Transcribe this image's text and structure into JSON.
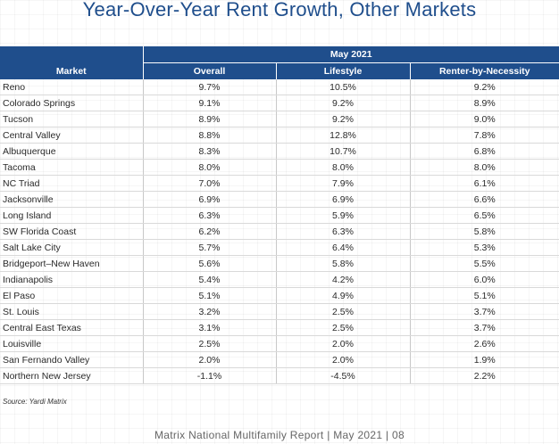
{
  "title": "Year-Over-Year Rent Growth, Other Markets",
  "table": {
    "group_header": "May 2021",
    "columns": [
      "Market",
      "Overall",
      "Lifestyle",
      "Renter-by-Necessity"
    ],
    "rows": [
      [
        "Reno",
        "9.7%",
        "10.5%",
        "9.2%"
      ],
      [
        "Colorado Springs",
        "9.1%",
        "9.2%",
        "8.9%"
      ],
      [
        "Tucson",
        "8.9%",
        "9.2%",
        "9.0%"
      ],
      [
        "Central Valley",
        "8.8%",
        "12.8%",
        "7.8%"
      ],
      [
        "Albuquerque",
        "8.3%",
        "10.7%",
        "6.8%"
      ],
      [
        "Tacoma",
        "8.0%",
        "8.0%",
        "8.0%"
      ],
      [
        "NC Triad",
        "7.0%",
        "7.9%",
        "6.1%"
      ],
      [
        "Jacksonville",
        "6.9%",
        "6.9%",
        "6.6%"
      ],
      [
        "Long Island",
        "6.3%",
        "5.9%",
        "6.5%"
      ],
      [
        "SW Florida Coast",
        "6.2%",
        "6.3%",
        "5.8%"
      ],
      [
        "Salt Lake City",
        "5.7%",
        "6.4%",
        "5.3%"
      ],
      [
        "Bridgeport–New Haven",
        "5.6%",
        "5.8%",
        "5.5%"
      ],
      [
        "Indianapolis",
        "5.4%",
        "4.2%",
        "6.0%"
      ],
      [
        "El Paso",
        "5.1%",
        "4.9%",
        "5.1%"
      ],
      [
        "St. Louis",
        "3.2%",
        "2.5%",
        "3.7%"
      ],
      [
        "Central East Texas",
        "3.1%",
        "2.5%",
        "3.7%"
      ],
      [
        "Louisville",
        "2.5%",
        "2.0%",
        "2.6%"
      ],
      [
        "San Fernando Valley",
        "2.0%",
        "2.0%",
        "1.9%"
      ],
      [
        "Northern New Jersey",
        "-1.1%",
        "-4.5%",
        "2.2%"
      ]
    ]
  },
  "source": "Source: Yardi Matrix",
  "footer": "Matrix National Multifamily Report  |  May 2021  |  08",
  "colors": {
    "header_bg": "#1f4e8c",
    "title": "#1f4e8c"
  }
}
